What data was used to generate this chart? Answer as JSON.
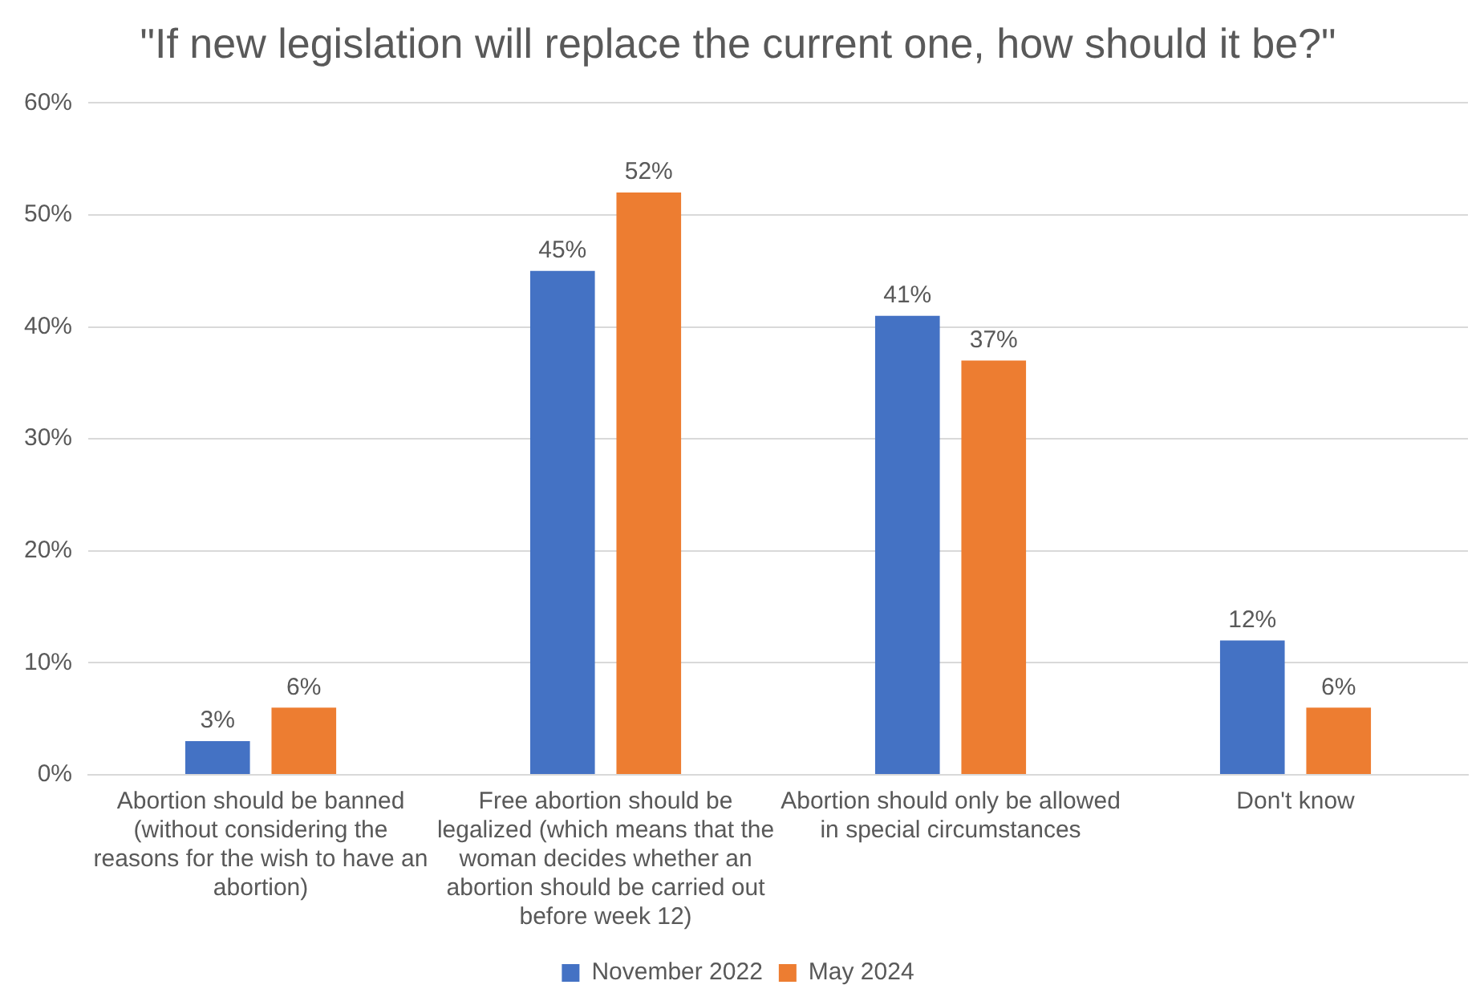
{
  "chart_data": {
    "type": "bar",
    "title": "\"If new legislation will replace the current one, how should it be?\"",
    "categories": [
      "Abortion should be banned (without considering the reasons for the wish to have an abortion)",
      "Free abortion should be legalized (which means that the woman decides whether an abortion should be carried out before week 12)",
      "Abortion should only be allowed in special circumstances",
      "Don't know"
    ],
    "series": [
      {
        "name": "November 2022",
        "color": "#4472c4",
        "values": [
          3,
          45,
          41,
          12
        ],
        "value_labels": [
          "3%",
          "45%",
          "41%",
          "12%"
        ]
      },
      {
        "name": "May 2024",
        "color": "#ed7d31",
        "values": [
          6,
          52,
          37,
          6
        ],
        "value_labels": [
          "6%",
          "52%",
          "37%",
          "6%"
        ]
      }
    ],
    "ylim": [
      0,
      60
    ],
    "yticks": [
      {
        "value": 0,
        "label": "0%"
      },
      {
        "value": 10,
        "label": "10%"
      },
      {
        "value": 20,
        "label": "20%"
      },
      {
        "value": 30,
        "label": "30%"
      },
      {
        "value": 40,
        "label": "40%"
      },
      {
        "value": 50,
        "label": "50%"
      },
      {
        "value": 60,
        "label": "60%"
      }
    ],
    "grid": "y",
    "legend": "bottom"
  }
}
